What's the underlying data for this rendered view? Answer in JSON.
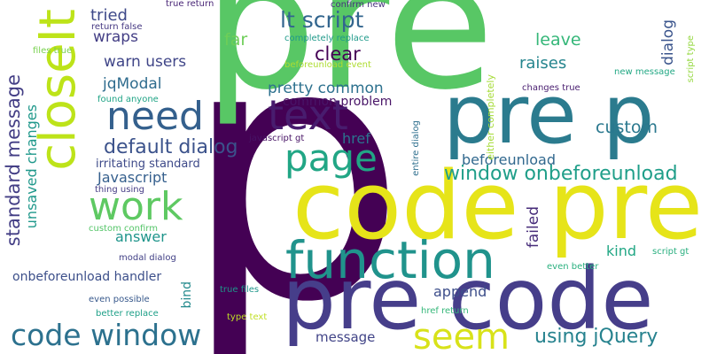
{
  "words": [
    {
      "text": "p",
      "color": "#440154"
    },
    {
      "text": "pre",
      "color": "#58c765"
    },
    {
      "text": "code pre",
      "color": "#e6e419"
    },
    {
      "text": "pre code",
      "color": "#463e8a"
    },
    {
      "text": "pre p",
      "color": "#2b7b8e"
    },
    {
      "text": "closeIt",
      "color": "#bde319"
    },
    {
      "text": "function",
      "color": "#20938c"
    },
    {
      "text": "text",
      "color": "#481c6e"
    },
    {
      "text": "need",
      "color": "#34608d"
    },
    {
      "text": "page",
      "color": "#21a685"
    },
    {
      "text": "work",
      "color": "#5ec962"
    },
    {
      "text": "code window",
      "color": "#2c718e"
    },
    {
      "text": "seem",
      "color": "#d8e219"
    },
    {
      "text": "lt script",
      "color": "#32658e"
    },
    {
      "text": "default dialog",
      "color": "#3b528b"
    },
    {
      "text": "window onbeforeunload",
      "color": "#1f9e89"
    },
    {
      "text": "standard message",
      "color": "#433e85"
    },
    {
      "text": "pretty common",
      "color": "#2d718e"
    },
    {
      "text": "clear",
      "color": "#440154"
    },
    {
      "text": "using jQuery",
      "color": "#26828e"
    },
    {
      "text": "custom",
      "color": "#2a788e"
    },
    {
      "text": "beforeunload",
      "color": "#31688e"
    },
    {
      "text": "raises",
      "color": "#25858e"
    },
    {
      "text": "leave",
      "color": "#35b779"
    },
    {
      "text": "far",
      "color": "#6ece58"
    },
    {
      "text": "warn users",
      "color": "#404688"
    },
    {
      "text": "tried",
      "color": "#3e4989"
    },
    {
      "text": "wraps",
      "color": "#433e85"
    },
    {
      "text": "jqModal",
      "color": "#2f6c8e"
    },
    {
      "text": "dialog",
      "color": "#3a548c"
    },
    {
      "text": "failed",
      "color": "#472c7a"
    },
    {
      "text": "kind",
      "color": "#22a785"
    },
    {
      "text": "answer",
      "color": "#1f958b"
    },
    {
      "text": "append",
      "color": "#3d4e8a"
    },
    {
      "text": "href",
      "color": "#2b748e"
    },
    {
      "text": "message",
      "color": "#414487"
    },
    {
      "text": "Javascript",
      "color": "#355f8d"
    },
    {
      "text": "unsaved changes",
      "color": "#1f988b"
    },
    {
      "text": "onbeforeunload handler",
      "color": "#3c4f8a"
    },
    {
      "text": "common problem",
      "color": "#481467"
    },
    {
      "text": "bind",
      "color": "#238a8d"
    },
    {
      "text": "irritating standard",
      "color": "#3e4a89"
    },
    {
      "text": "either completely",
      "color": "#a5db36"
    },
    {
      "text": "true return",
      "color": "#482576"
    },
    {
      "text": "confirm new",
      "color": "#46327e"
    },
    {
      "text": "return false",
      "color": "#453882"
    },
    {
      "text": "files true",
      "color": "#7ad151"
    },
    {
      "text": "completely replace",
      "color": "#1f9a8a"
    },
    {
      "text": "beforeunload event",
      "color": "#addc30"
    },
    {
      "text": "found anyone",
      "color": "#20a486"
    },
    {
      "text": "new message",
      "color": "#22a884"
    },
    {
      "text": "script type",
      "color": "#95d840"
    },
    {
      "text": "changes true",
      "color": "#481d6f"
    },
    {
      "text": "javascript gt",
      "color": "#471365"
    },
    {
      "text": "entire dialog",
      "color": "#2e6f8e"
    },
    {
      "text": "thing using",
      "color": "#443b84"
    },
    {
      "text": "custom confirm",
      "color": "#54c568"
    },
    {
      "text": "modal dialog",
      "color": "#424186"
    },
    {
      "text": "even possible",
      "color": "#38598c"
    },
    {
      "text": "true files",
      "color": "#1f968b"
    },
    {
      "text": "better replace",
      "color": "#1fa088"
    },
    {
      "text": "type text",
      "color": "#c0df25"
    },
    {
      "text": "href return",
      "color": "#35b779"
    },
    {
      "text": "even better",
      "color": "#2ab07f"
    },
    {
      "text": "script gt",
      "color": "#29af7f"
    }
  ]
}
